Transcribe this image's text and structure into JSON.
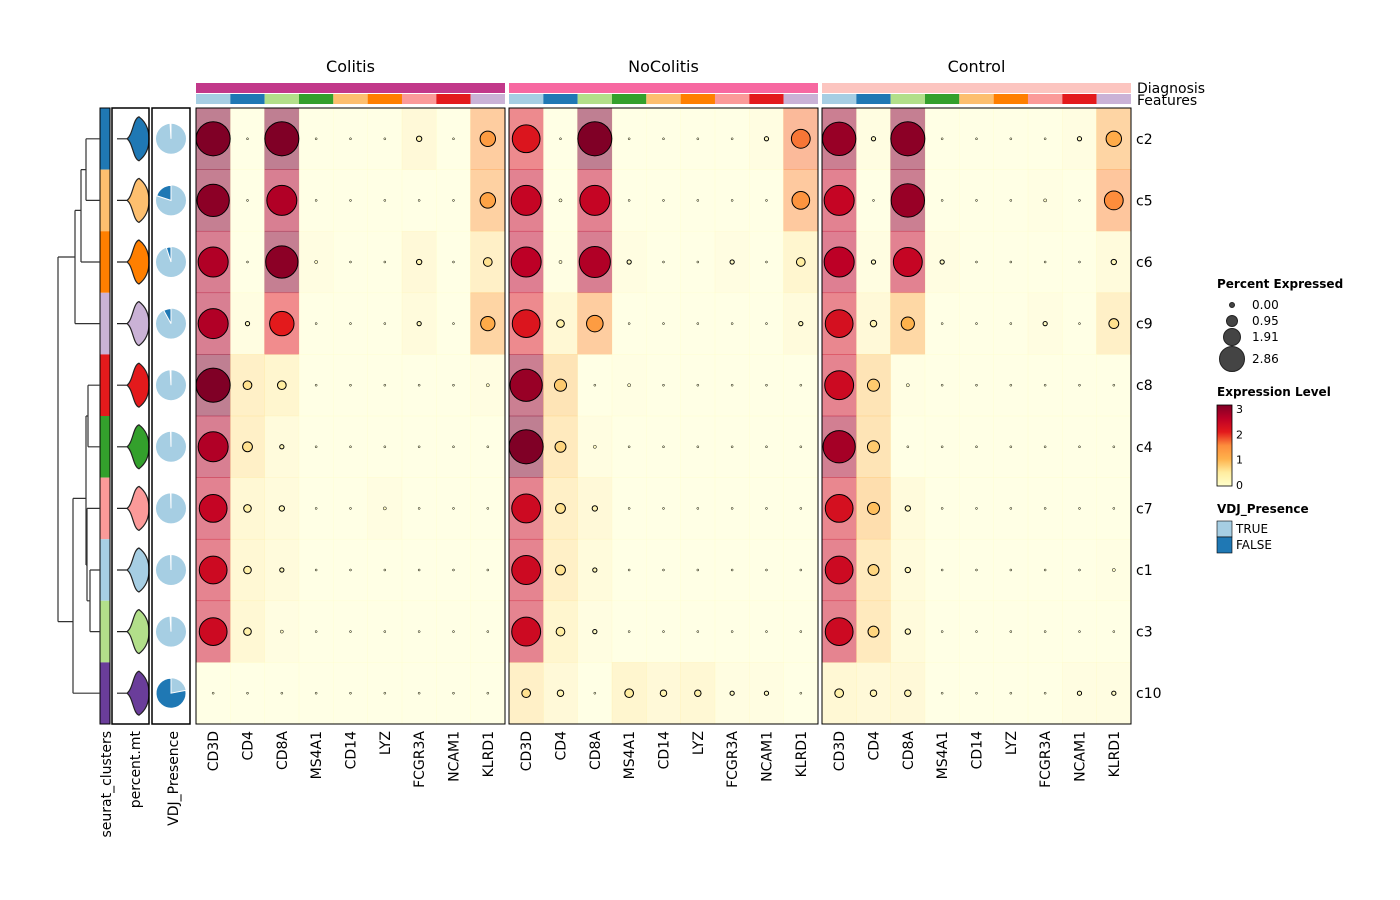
{
  "chart_data": {
    "type": "heatmap",
    "groups": [
      "Colitis",
      "NoColitis",
      "Control"
    ],
    "group_colors": [
      "#c2388a",
      "#f768a1",
      "#fcc5c0"
    ],
    "genes": [
      "CD3D",
      "CD4",
      "CD8A",
      "MS4A1",
      "CD14",
      "LYZ",
      "FCGR3A",
      "NCAM1",
      "KLRD1"
    ],
    "gene_colors": [
      "#a6cee3",
      "#1f78b4",
      "#b2df8a",
      "#33a02c",
      "#fdbf6f",
      "#ff7f00",
      "#fb9a99",
      "#e31a1c",
      "#cab2d6"
    ],
    "clusters": [
      "c2",
      "c5",
      "c6",
      "c9",
      "c8",
      "c4",
      "c7",
      "c1",
      "c3",
      "c10"
    ],
    "cluster_colors": [
      "#1f78b4",
      "#fdbf6f",
      "#ff7f00",
      "#cab2d6",
      "#e31a1c",
      "#33a02c",
      "#fb9a99",
      "#a6cee3",
      "#b2df8a",
      "#6a3d9a"
    ],
    "vdj_false_fraction": [
      0.01,
      0.2,
      0.05,
      0.08,
      0.01,
      0.005,
      0.005,
      0.005,
      0.01,
      0.78
    ],
    "annotation_labels": [
      "seurat_clusters",
      "percent.mt",
      "VDJ_Presence"
    ],
    "top_annotation_labels": [
      "Diagnosis",
      "Features"
    ],
    "expression": {
      "Colitis": [
        [
          3,
          0,
          3,
          0,
          0,
          0,
          0.3,
          0,
          1.3
        ],
        [
          2.9,
          0,
          2.6,
          0,
          0,
          0,
          0,
          0,
          1.2
        ],
        [
          2.6,
          0,
          2.9,
          0.1,
          0,
          0,
          0.3,
          0,
          0.6
        ],
        [
          2.6,
          0.1,
          2.0,
          0,
          0,
          0,
          0.2,
          0,
          1.1
        ],
        [
          3,
          0.6,
          0.5,
          0,
          0,
          0,
          0,
          0,
          0.1
        ],
        [
          2.6,
          0.6,
          0.2,
          0,
          0,
          0,
          0,
          0,
          0
        ],
        [
          2.4,
          0.4,
          0.2,
          0,
          0,
          0.1,
          0,
          0,
          0
        ],
        [
          2.3,
          0.4,
          0.2,
          0,
          0,
          0,
          0,
          0,
          0
        ],
        [
          2.3,
          0.4,
          0.1,
          0,
          0,
          0,
          0,
          0,
          0
        ],
        [
          0,
          0,
          0,
          0,
          0,
          0,
          0,
          0,
          0
        ]
      ],
      "NoColitis": [
        [
          2.1,
          0,
          3,
          0,
          0,
          0,
          0,
          0.1,
          1.6
        ],
        [
          2.4,
          0,
          2.4,
          0,
          0,
          0,
          0,
          0,
          1.4
        ],
        [
          2.5,
          0.05,
          2.6,
          0.1,
          0,
          0,
          0.1,
          0,
          0.5
        ],
        [
          2.1,
          0.4,
          1.3,
          0,
          0,
          0,
          0,
          0,
          0.2
        ],
        [
          2.8,
          0.8,
          0,
          0.05,
          0,
          0,
          0,
          0,
          0
        ],
        [
          3,
          0.7,
          0.1,
          0,
          0,
          0,
          0,
          0,
          0
        ],
        [
          2.3,
          0.6,
          0.3,
          0,
          0,
          0,
          0,
          0,
          0
        ],
        [
          2.3,
          0.6,
          0.2,
          0,
          0,
          0,
          0,
          0,
          0
        ],
        [
          2.3,
          0.5,
          0.1,
          0,
          0,
          0,
          0,
          0,
          0
        ],
        [
          0.6,
          0.3,
          0,
          0.5,
          0.3,
          0.4,
          0.1,
          0.1,
          0
        ]
      ],
      "Control": [
        [
          2.8,
          0.1,
          2.9,
          0,
          0,
          0,
          0,
          0.1,
          1.1
        ],
        [
          2.4,
          0,
          2.8,
          0,
          0,
          0,
          0.05,
          0,
          1.5
        ],
        [
          2.5,
          0.1,
          2.4,
          0.1,
          0,
          0,
          0,
          0,
          0.2
        ],
        [
          2.2,
          0.3,
          1.0,
          0,
          0,
          0,
          0.1,
          0,
          0.6
        ],
        [
          2.3,
          0.8,
          0.05,
          0,
          0,
          0,
          0,
          0,
          0
        ],
        [
          2.7,
          0.8,
          0,
          0,
          0,
          0,
          0,
          0,
          0
        ],
        [
          2.2,
          0.9,
          0.2,
          0,
          0,
          0,
          0,
          0,
          0
        ],
        [
          2.3,
          0.7,
          0.2,
          0,
          0,
          0,
          0,
          0,
          0.05
        ],
        [
          2.3,
          0.7,
          0.2,
          0,
          0,
          0,
          0,
          0,
          0
        ],
        [
          0.4,
          0.3,
          0.3,
          0,
          0,
          0,
          0,
          0.1,
          0.1
        ]
      ]
    },
    "percent_expressed": {
      "Colitis": [
        [
          2.86,
          0,
          2.86,
          0,
          0,
          0,
          0.3,
          0,
          1.2
        ],
        [
          2.7,
          0,
          2.5,
          0,
          0,
          0,
          0,
          0,
          1.2
        ],
        [
          2.5,
          0,
          2.7,
          0.1,
          0,
          0,
          0.3,
          0,
          0.6
        ],
        [
          2.5,
          0.2,
          2.0,
          0,
          0,
          0,
          0.2,
          0,
          1.1
        ],
        [
          2.86,
          0.6,
          0.6,
          0,
          0,
          0,
          0,
          0,
          0.1
        ],
        [
          2.5,
          0.7,
          0.2,
          0,
          0,
          0,
          0,
          0,
          0
        ],
        [
          2.3,
          0.5,
          0.3,
          0,
          0,
          0.1,
          0,
          0,
          0
        ],
        [
          2.3,
          0.5,
          0.2,
          0,
          0,
          0,
          0,
          0,
          0
        ],
        [
          2.3,
          0.5,
          0.1,
          0,
          0,
          0,
          0,
          0,
          0
        ],
        [
          0,
          0,
          0,
          0,
          0,
          0,
          0,
          0,
          0
        ]
      ],
      "NoColitis": [
        [
          2.3,
          0,
          2.86,
          0,
          0,
          0,
          0,
          0.2,
          1.5
        ],
        [
          2.5,
          0.1,
          2.5,
          0,
          0,
          0,
          0,
          0,
          1.4
        ],
        [
          2.5,
          0.1,
          2.6,
          0.2,
          0,
          0,
          0.2,
          0,
          0.6
        ],
        [
          2.3,
          0.5,
          1.3,
          0,
          0,
          0,
          0,
          0,
          0.2
        ],
        [
          2.7,
          0.9,
          0,
          0.1,
          0,
          0,
          0,
          0,
          0
        ],
        [
          2.86,
          0.8,
          0.1,
          0,
          0,
          0,
          0,
          0,
          0
        ],
        [
          2.4,
          0.7,
          0.3,
          0,
          0,
          0,
          0,
          0,
          0
        ],
        [
          2.4,
          0.7,
          0.2,
          0,
          0,
          0,
          0,
          0,
          0
        ],
        [
          2.4,
          0.6,
          0.2,
          0,
          0,
          0,
          0,
          0,
          0
        ],
        [
          0.6,
          0.4,
          0,
          0.6,
          0.4,
          0.4,
          0.2,
          0.2,
          0
        ]
      ],
      "Control": [
        [
          2.8,
          0.2,
          2.86,
          0,
          0,
          0,
          0,
          0.2,
          1.2
        ],
        [
          2.5,
          0,
          2.8,
          0,
          0,
          0,
          0.1,
          0,
          1.5
        ],
        [
          2.5,
          0.2,
          2.4,
          0.2,
          0,
          0,
          0,
          0,
          0.3
        ],
        [
          2.3,
          0.4,
          1.0,
          0,
          0,
          0,
          0.2,
          0,
          0.7
        ],
        [
          2.4,
          0.9,
          0.1,
          0,
          0,
          0,
          0,
          0,
          0
        ],
        [
          2.7,
          0.9,
          0,
          0,
          0,
          0,
          0,
          0,
          0
        ],
        [
          2.3,
          0.9,
          0.3,
          0,
          0,
          0,
          0,
          0,
          0
        ],
        [
          2.3,
          0.8,
          0.3,
          0,
          0,
          0,
          0,
          0,
          0.1
        ],
        [
          2.3,
          0.8,
          0.3,
          0,
          0,
          0,
          0,
          0,
          0
        ],
        [
          0.6,
          0.4,
          0.4,
          0,
          0,
          0,
          0,
          0.2,
          0.2
        ]
      ]
    },
    "legend": {
      "size_title": "Percent Expressed",
      "size_values": [
        "0.00",
        "0.95",
        "1.91",
        "2.86"
      ],
      "color_title": "Expression Level",
      "color_ticks": [
        "3",
        "2",
        "1",
        "0"
      ],
      "color_range": [
        0,
        3
      ],
      "color_stops": [
        "#ffffcc",
        "#ffeda0",
        "#feb24c",
        "#fd8d3c",
        "#e31a1c",
        "#bd0026",
        "#800026"
      ],
      "vdj_title": "VDJ_Presence",
      "vdj_items": [
        "TRUE",
        "FALSE"
      ],
      "vdj_colors": [
        "#a6cee3",
        "#1f78b4"
      ]
    }
  }
}
